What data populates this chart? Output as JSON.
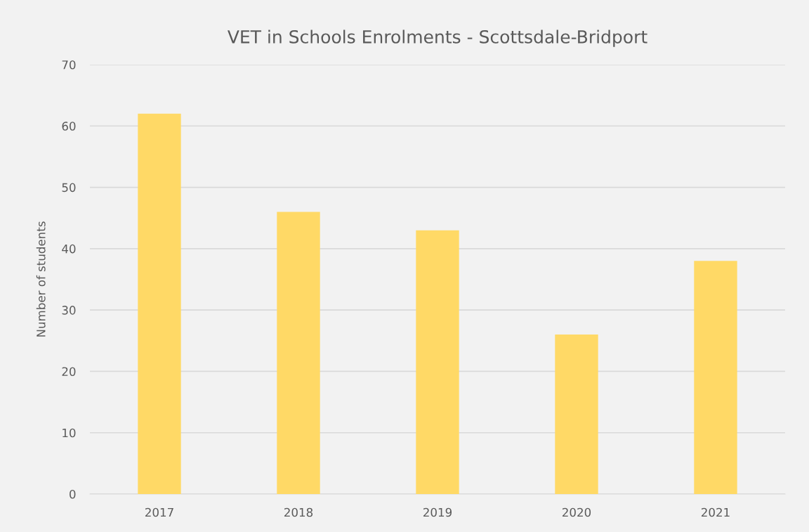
{
  "chart_data": {
    "type": "bar",
    "title": "VET in Schools Enrolments - Scottsdale-Bridport",
    "ylabel": "Number of students",
    "categories": [
      "2017",
      "2018",
      "2019",
      "2020",
      "2021"
    ],
    "values": [
      62,
      46,
      43,
      26,
      38
    ],
    "color": "#ffd966",
    "ylim": [
      0,
      70
    ],
    "yticks": [
      0,
      10,
      20,
      30,
      40,
      50,
      60,
      70
    ],
    "grid": "y"
  }
}
